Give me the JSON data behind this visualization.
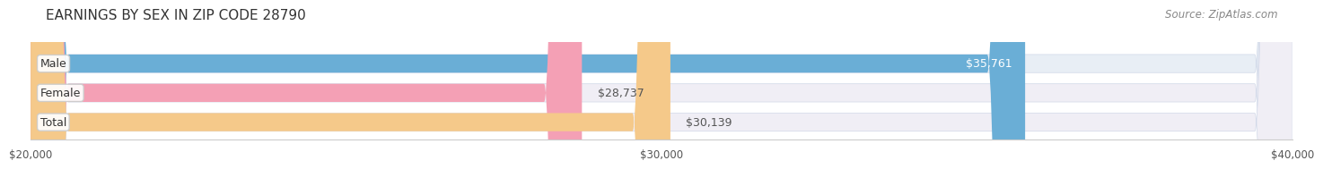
{
  "title": "EARNINGS BY SEX IN ZIP CODE 28790",
  "source": "Source: ZipAtlas.com",
  "categories": [
    "Male",
    "Female",
    "Total"
  ],
  "values": [
    35761,
    28737,
    30139
  ],
  "bar_colors": [
    "#6aaed6",
    "#f4a0b5",
    "#f5c98a"
  ],
  "bar_bg_colors": [
    "#e8eef5",
    "#f0eef5",
    "#f0eef5"
  ],
  "value_labels": [
    "$35,761",
    "$28,737",
    "$30,139"
  ],
  "value_inside": [
    true,
    false,
    false
  ],
  "xmin": 20000,
  "xmax": 40000,
  "xticks": [
    20000,
    30000,
    40000
  ],
  "xticklabels": [
    "$20,000",
    "$30,000",
    "$40,000"
  ],
  "title_fontsize": 11,
  "label_fontsize": 9,
  "value_fontsize": 9,
  "source_fontsize": 8.5,
  "background_color": "#ffffff",
  "bar_height": 0.62
}
